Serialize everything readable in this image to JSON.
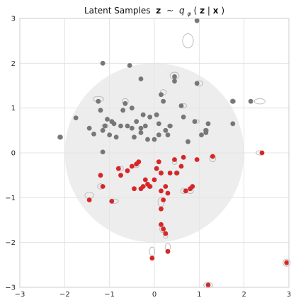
{
  "chart_data": {
    "type": "scatter",
    "title": "Latent Samples",
    "title_bold_symbols": [
      "z",
      "~",
      "q",
      "φ",
      "z",
      "x"
    ],
    "xlim": [
      -3,
      3
    ],
    "ylim": [
      -3,
      3
    ],
    "xticks": [
      "−3",
      "−2",
      "−1",
      "0",
      "1",
      "2",
      "3"
    ],
    "yticks": [
      "−3",
      "−2",
      "−1",
      "0",
      "1",
      "2",
      "3"
    ],
    "grid": true,
    "prior_circle": {
      "cx": 0,
      "cy": 0,
      "r": 2,
      "color": "#e6e6e6"
    },
    "series": [
      {
        "name": "",
        "color": "#777777",
        "points": [
          [
            -2.1,
            0.35
          ],
          [
            -1.75,
            0.78
          ],
          [
            -1.45,
            0.55
          ],
          [
            -1.35,
            0.42
          ],
          [
            -1.25,
            1.15
          ],
          [
            -1.2,
            0.95
          ],
          [
            -1.15,
            0.5
          ],
          [
            -1.1,
            0.6
          ],
          [
            -1.05,
            0.75
          ],
          [
            -1.0,
            0.4
          ],
          [
            -1.15,
            2.0
          ],
          [
            -0.95,
            0.7
          ],
          [
            -0.9,
            0.65
          ],
          [
            -0.85,
            0.35
          ],
          [
            -0.75,
            0.6
          ],
          [
            -0.7,
            0.95
          ],
          [
            -0.65,
            1.1
          ],
          [
            -0.6,
            0.6
          ],
          [
            -0.5,
            1.0
          ],
          [
            -0.5,
            0.55
          ],
          [
            -0.45,
            0.35
          ],
          [
            -0.4,
            0.7
          ],
          [
            -0.3,
            0.55
          ],
          [
            -0.3,
            0.45
          ],
          [
            -0.25,
            0.85
          ],
          [
            -0.2,
            0.6
          ],
          [
            -0.15,
            0.3
          ],
          [
            -0.1,
            0.8
          ],
          [
            0.0,
            0.3
          ],
          [
            0.05,
            0.85
          ],
          [
            0.1,
            0.65
          ],
          [
            0.1,
            0.4
          ],
          [
            0.15,
            1.3
          ],
          [
            0.2,
            1.15
          ],
          [
            0.25,
            0.5
          ],
          [
            0.3,
            0.4
          ],
          [
            0.35,
            0.6
          ],
          [
            0.45,
            1.6
          ],
          [
            0.45,
            1.7
          ],
          [
            0.6,
            1.05
          ],
          [
            0.65,
            0.8
          ],
          [
            0.75,
            0.25
          ],
          [
            0.9,
            0.7
          ],
          [
            0.95,
            1.55
          ],
          [
            1.05,
            0.4
          ],
          [
            1.15,
            0.5
          ],
          [
            1.15,
            0.45
          ],
          [
            1.2,
            0.65
          ],
          [
            1.75,
            1.15
          ],
          [
            1.75,
            0.65
          ],
          [
            2.15,
            1.15
          ],
          [
            0.95,
            2.95
          ],
          [
            -0.55,
            1.95
          ],
          [
            -0.3,
            1.65
          ],
          [
            -1.15,
            0.02
          ]
        ]
      },
      {
        "name": "",
        "color": "#d62728",
        "points": [
          [
            -1.45,
            -1.05
          ],
          [
            -1.2,
            -0.5
          ],
          [
            -1.15,
            -0.75
          ],
          [
            -0.95,
            -1.08
          ],
          [
            -0.8,
            -0.35
          ],
          [
            -0.75,
            -0.5
          ],
          [
            -0.6,
            -0.4
          ],
          [
            -0.5,
            -0.3
          ],
          [
            -0.45,
            -0.8
          ],
          [
            -0.4,
            -0.25
          ],
          [
            -0.3,
            -0.8
          ],
          [
            -0.25,
            -0.75
          ],
          [
            -0.2,
            -0.6
          ],
          [
            -0.15,
            -0.7
          ],
          [
            -0.1,
            -0.75
          ],
          [
            0.0,
            -0.6
          ],
          [
            0.1,
            -0.2
          ],
          [
            0.15,
            -0.85
          ],
          [
            0.15,
            -0.45
          ],
          [
            0.2,
            -1.05
          ],
          [
            0.25,
            -0.75
          ],
          [
            0.3,
            -0.9
          ],
          [
            0.35,
            -0.45
          ],
          [
            0.45,
            -0.15
          ],
          [
            0.5,
            -0.45
          ],
          [
            0.6,
            -0.3
          ],
          [
            0.65,
            -0.1
          ],
          [
            0.7,
            -0.85
          ],
          [
            0.8,
            -0.8
          ],
          [
            0.85,
            -0.75
          ],
          [
            0.95,
            -0.15
          ],
          [
            1.3,
            -0.08
          ],
          [
            0.15,
            -1.25
          ],
          [
            0.15,
            -1.6
          ],
          [
            0.2,
            -1.7
          ],
          [
            0.25,
            -1.8
          ],
          [
            0.3,
            -2.2
          ],
          [
            -0.05,
            -2.35
          ],
          [
            1.2,
            -2.95
          ],
          [
            2.4,
            0.0
          ],
          [
            2.95,
            -2.45
          ],
          [
            -0.35,
            -0.2
          ],
          [
            0.05,
            -0.35
          ]
        ]
      }
    ],
    "ellipses": [
      [
        -1.25,
        1.2,
        0.12,
        0.06
      ],
      [
        -1.1,
        0.6,
        0.07,
        0.05
      ],
      [
        -0.65,
        1.15,
        0.07,
        0.06
      ],
      [
        0.45,
        1.72,
        0.1,
        0.08
      ],
      [
        0.2,
        1.35,
        0.07,
        0.06
      ],
      [
        0.75,
        2.5,
        0.12,
        0.16
      ],
      [
        1.0,
        1.55,
        0.08,
        0.06
      ],
      [
        1.75,
        1.15,
        0.06,
        0.05
      ],
      [
        2.35,
        1.15,
        0.12,
        0.06
      ],
      [
        -2.1,
        0.35,
        0.06,
        0.05
      ],
      [
        0.65,
        1.05,
        0.07,
        0.05
      ],
      [
        0.35,
        0.6,
        0.06,
        0.04
      ],
      [
        1.15,
        0.5,
        0.06,
        0.05
      ],
      [
        0.95,
        0.7,
        0.05,
        0.04
      ],
      [
        -0.25,
        0.85,
        0.05,
        0.04
      ],
      [
        -1.45,
        -0.95,
        0.1,
        0.07
      ],
      [
        -1.2,
        -0.75,
        0.07,
        0.06
      ],
      [
        -0.9,
        -1.08,
        0.1,
        0.05
      ],
      [
        -0.75,
        -0.35,
        0.06,
        0.05
      ],
      [
        -0.4,
        -0.28,
        0.06,
        0.05
      ],
      [
        0.15,
        -1.1,
        0.07,
        0.1
      ],
      [
        0.18,
        -1.7,
        0.06,
        0.08
      ],
      [
        0.25,
        -1.85,
        0.05,
        0.06
      ],
      [
        -0.05,
        -2.2,
        0.06,
        0.1
      ],
      [
        0.3,
        -2.1,
        0.06,
        0.08
      ],
      [
        1.2,
        -2.95,
        0.1,
        0.06
      ],
      [
        2.35,
        0.0,
        0.08,
        0.05
      ],
      [
        2.95,
        -2.45,
        0.08,
        0.08
      ],
      [
        0.8,
        -0.85,
        0.07,
        0.06
      ],
      [
        1.3,
        -0.12,
        0.07,
        0.08
      ],
      [
        0.5,
        -0.45,
        0.06,
        0.05
      ],
      [
        0.65,
        -0.85,
        0.06,
        0.06
      ],
      [
        -0.1,
        -0.75,
        0.06,
        0.05
      ],
      [
        0.45,
        -0.2,
        0.05,
        0.06
      ],
      [
        0.15,
        -0.45,
        0.05,
        0.05
      ]
    ]
  }
}
